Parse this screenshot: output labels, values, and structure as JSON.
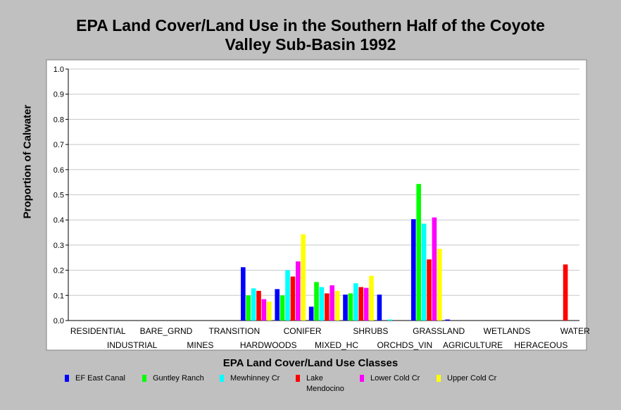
{
  "chart_data": {
    "type": "bar",
    "title_line1": "EPA Land Cover/Land Use in the Southern Half of the Coyote",
    "title_line2": "Valley Sub-Basin 1992",
    "xlabel": "EPA Land Cover/Land Use Classes",
    "ylabel": "Proportion of Calwater",
    "ylim": [
      0,
      1.0
    ],
    "yticks": [
      "0.0",
      "0.1",
      "0.2",
      "0.3",
      "0.4",
      "0.5",
      "0.6",
      "0.7",
      "0.8",
      "0.9",
      "1.0"
    ],
    "grid": true,
    "legend_position": "bottom",
    "categories": [
      "RESIDENTIAL",
      "INDUSTRIAL",
      "BARE_GRND",
      "MINES",
      "TRANSITION",
      "HARDWOODS",
      "CONIFER",
      "MIXED_HC",
      "SHRUBS",
      "ORCHDS_VIN",
      "GRASSLAND",
      "AGRICULTURE",
      "WETLANDS",
      "HERACEOUS",
      "WATER"
    ],
    "series": [
      {
        "name": "EF East Canal",
        "color": "#0000ff",
        "values": [
          0,
          0,
          0,
          0,
          0,
          0.212,
          0.125,
          0.055,
          0.103,
          0.103,
          0.403,
          0.004,
          0,
          0,
          0
        ]
      },
      {
        "name": "Guntley Ranch",
        "color": "#00ff00",
        "values": [
          0,
          0,
          0,
          0,
          0,
          0.1,
          0.1,
          0.153,
          0.108,
          0,
          0.543,
          0,
          0,
          0,
          0
        ]
      },
      {
        "name": "Mewhinney Cr",
        "color": "#00ffff",
        "values": [
          0,
          0,
          0,
          0,
          0,
          0.128,
          0.2,
          0.133,
          0.148,
          0.004,
          0.385,
          0,
          0,
          0,
          0
        ]
      },
      {
        "name": "Lake Mendocino",
        "color": "#ff0000",
        "values": [
          0,
          0,
          0,
          0,
          0,
          0.118,
          0.175,
          0.108,
          0.133,
          0,
          0.243,
          0,
          0,
          0,
          0.223
        ]
      },
      {
        "name": "Lower Cold Cr",
        "color": "#ff00ff",
        "values": [
          0,
          0,
          0,
          0,
          0,
          0.085,
          0.235,
          0.14,
          0.13,
          0,
          0.41,
          0,
          0,
          0,
          0
        ]
      },
      {
        "name": "Upper Cold Cr",
        "color": "#ffff00",
        "values": [
          0,
          0,
          0,
          0,
          0,
          0.075,
          0.343,
          0.118,
          0.178,
          0,
          0.285,
          0,
          0,
          0,
          0
        ]
      }
    ]
  }
}
